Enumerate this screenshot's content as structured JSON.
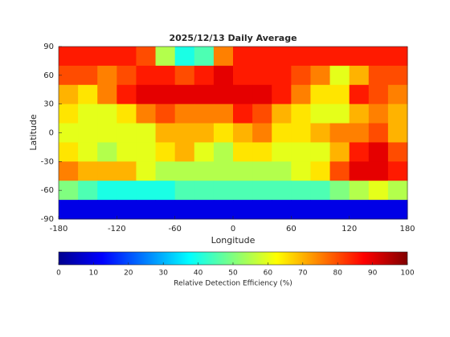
{
  "chart_data": {
    "type": "heatmap",
    "title": "2025/12/13 Daily Average",
    "xlabel": "Longitude",
    "ylabel": "Latitude",
    "xlim": [
      -180,
      180
    ],
    "ylim": [
      -90,
      90
    ],
    "xticks": [
      -180,
      -120,
      -60,
      0,
      60,
      120,
      180
    ],
    "yticks": [
      -90,
      -60,
      -30,
      0,
      30,
      60,
      90
    ],
    "x": [
      -170,
      -150,
      -130,
      -110,
      -90,
      -70,
      -50,
      -30,
      -10,
      10,
      30,
      50,
      70,
      90,
      110,
      130,
      150,
      170
    ],
    "y": [
      80,
      60,
      40,
      20,
      0,
      -20,
      -40,
      -60,
      -80
    ],
    "values": [
      [
        85,
        85,
        85,
        85,
        80,
        55,
        40,
        45,
        75,
        85,
        85,
        85,
        85,
        85,
        85,
        85,
        85,
        85
      ],
      [
        80,
        80,
        75,
        80,
        85,
        85,
        80,
        85,
        90,
        85,
        85,
        85,
        80,
        75,
        60,
        70,
        80,
        80
      ],
      [
        70,
        65,
        75,
        85,
        90,
        90,
        90,
        90,
        90,
        90,
        90,
        85,
        75,
        65,
        65,
        85,
        80,
        75
      ],
      [
        65,
        60,
        60,
        65,
        75,
        80,
        75,
        75,
        75,
        85,
        80,
        70,
        65,
        60,
        60,
        70,
        75,
        70
      ],
      [
        60,
        60,
        60,
        60,
        60,
        70,
        70,
        70,
        65,
        70,
        75,
        65,
        65,
        70,
        75,
        75,
        80,
        70
      ],
      [
        65,
        60,
        55,
        60,
        60,
        65,
        70,
        60,
        55,
        65,
        65,
        60,
        60,
        60,
        70,
        85,
        90,
        80
      ],
      [
        75,
        70,
        70,
        70,
        60,
        55,
        55,
        55,
        55,
        55,
        55,
        55,
        60,
        65,
        80,
        90,
        90,
        85
      ],
      [
        50,
        45,
        40,
        40,
        40,
        40,
        45,
        45,
        45,
        45,
        45,
        45,
        45,
        45,
        50,
        55,
        60,
        55
      ],
      [
        10,
        10,
        10,
        10,
        10,
        10,
        10,
        10,
        10,
        10,
        10,
        10,
        10,
        10,
        10,
        10,
        10,
        10
      ]
    ],
    "colormap": "jet",
    "clim": [
      0,
      100
    ],
    "cticks": [
      0,
      10,
      20,
      30,
      40,
      50,
      60,
      70,
      80,
      90,
      100
    ],
    "clabel": "Relative Detection Efficiency (%)"
  }
}
